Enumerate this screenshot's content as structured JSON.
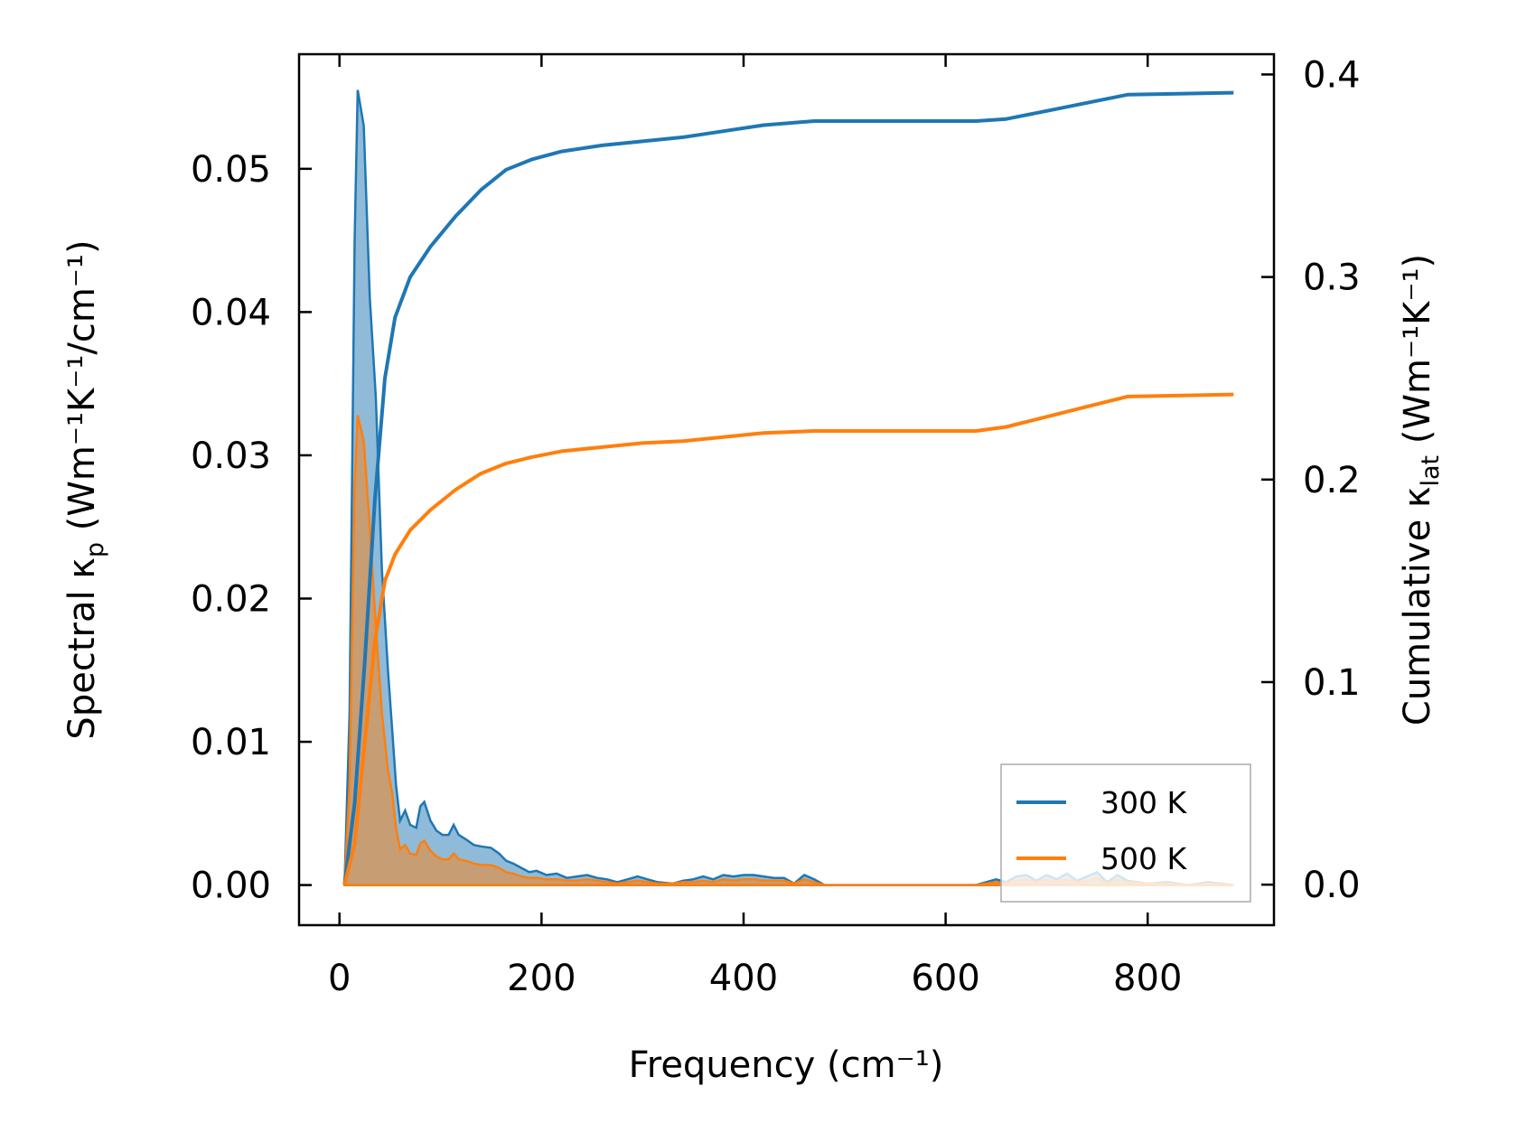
{
  "chart_data": {
    "type": "line",
    "xlabel": "Frequency (cm⁻¹)",
    "ylabel_left": {
      "main": "Spectral κ",
      "sub": "p",
      "units": " (Wm⁻¹K⁻¹/cm⁻¹)"
    },
    "ylabel_right": {
      "main": "Cumulative κ",
      "sub": "lat",
      "units": " (Wm⁻¹K⁻¹)"
    },
    "xlim": [
      -40,
      925
    ],
    "ylim_left": [
      -0.0028,
      0.058
    ],
    "ylim_right": [
      -0.02,
      0.41
    ],
    "x_ticks": [
      0,
      200,
      400,
      600,
      800
    ],
    "x_tick_labels": [
      "0",
      "200",
      "400",
      "600",
      "800"
    ],
    "y_left_ticks": [
      0,
      0.01,
      0.02,
      0.03,
      0.04,
      0.05
    ],
    "y_left_tick_labels": [
      "0.00",
      "0.01",
      "0.02",
      "0.03",
      "0.04",
      "0.05"
    ],
    "y_right_ticks": [
      0,
      0.1,
      0.2,
      0.3,
      0.4
    ],
    "y_right_tick_labels": [
      "0.0",
      "0.1",
      "0.2",
      "0.3",
      "0.4"
    ],
    "legend": {
      "position": "lower-right",
      "entries": [
        "300 K",
        "500 K"
      ]
    },
    "series": [
      {
        "name": "300 K",
        "color": "#1f77b4",
        "spectral": [
          [
            5,
            0
          ],
          [
            10,
            0.012
          ],
          [
            15,
            0.045
          ],
          [
            18,
            0.0555
          ],
          [
            24,
            0.053
          ],
          [
            30,
            0.041
          ],
          [
            36,
            0.034
          ],
          [
            42,
            0.022
          ],
          [
            48,
            0.015
          ],
          [
            52,
            0.011
          ],
          [
            56,
            0.007
          ],
          [
            60,
            0.0045
          ],
          [
            65,
            0.0052
          ],
          [
            70,
            0.0042
          ],
          [
            76,
            0.004
          ],
          [
            80,
            0.0055
          ],
          [
            84,
            0.0058
          ],
          [
            90,
            0.0045
          ],
          [
            96,
            0.0038
          ],
          [
            102,
            0.0035
          ],
          [
            108,
            0.0035
          ],
          [
            113,
            0.0042
          ],
          [
            118,
            0.0035
          ],
          [
            125,
            0.0032
          ],
          [
            133,
            0.0028
          ],
          [
            140,
            0.0027
          ],
          [
            150,
            0.0026
          ],
          [
            158,
            0.0022
          ],
          [
            165,
            0.0017
          ],
          [
            172,
            0.0015
          ],
          [
            180,
            0.0012
          ],
          [
            188,
            0.0009
          ],
          [
            195,
            0.001
          ],
          [
            205,
            0.0007
          ],
          [
            215,
            0.0008
          ],
          [
            225,
            0.0005
          ],
          [
            235,
            0.0006
          ],
          [
            245,
            0.0007
          ],
          [
            255,
            0.0005
          ],
          [
            265,
            0.0004
          ],
          [
            275,
            0.0002
          ],
          [
            285,
            0.0004
          ],
          [
            295,
            0.0006
          ],
          [
            305,
            0.0004
          ],
          [
            315,
            0.0002
          ],
          [
            330,
            0.0001
          ],
          [
            340,
            0.0003
          ],
          [
            350,
            0.0004
          ],
          [
            360,
            0.0006
          ],
          [
            370,
            0.0004
          ],
          [
            380,
            0.0007
          ],
          [
            390,
            0.0006
          ],
          [
            400,
            0.0007
          ],
          [
            410,
            0.0007
          ],
          [
            420,
            0.0006
          ],
          [
            430,
            0.0005
          ],
          [
            440,
            0.0005
          ],
          [
            450,
            0.0001
          ],
          [
            460,
            0.0007
          ],
          [
            470,
            0.0004
          ],
          [
            480,
            0
          ],
          [
            630,
            0
          ],
          [
            640,
            0.0002
          ],
          [
            650,
            0.0004
          ],
          [
            660,
            0.0002
          ],
          [
            670,
            0.0006
          ],
          [
            680,
            0.0007
          ],
          [
            690,
            0.0003
          ],
          [
            700,
            0.0007
          ],
          [
            710,
            0.0004
          ],
          [
            720,
            0.0008
          ],
          [
            730,
            0.0003
          ],
          [
            740,
            0.0006
          ],
          [
            750,
            0.0009
          ],
          [
            760,
            0.0002
          ],
          [
            770,
            0.0007
          ],
          [
            780,
            0.0003
          ],
          [
            800,
            0.0001
          ],
          [
            820,
            0.0002
          ],
          [
            840,
            0
          ],
          [
            860,
            0.0002
          ],
          [
            885,
            0
          ]
        ],
        "cumulative": [
          [
            5,
            0
          ],
          [
            15,
            0.04
          ],
          [
            25,
            0.11
          ],
          [
            35,
            0.19
          ],
          [
            45,
            0.25
          ],
          [
            55,
            0.28
          ],
          [
            70,
            0.3
          ],
          [
            90,
            0.315
          ],
          [
            115,
            0.33
          ],
          [
            140,
            0.343
          ],
          [
            165,
            0.353
          ],
          [
            190,
            0.358
          ],
          [
            220,
            0.362
          ],
          [
            260,
            0.365
          ],
          [
            300,
            0.367
          ],
          [
            340,
            0.369
          ],
          [
            380,
            0.372
          ],
          [
            420,
            0.375
          ],
          [
            470,
            0.377
          ],
          [
            630,
            0.377
          ],
          [
            660,
            0.378
          ],
          [
            700,
            0.382
          ],
          [
            740,
            0.386
          ],
          [
            780,
            0.39
          ],
          [
            885,
            0.391
          ]
        ]
      },
      {
        "name": "500 K",
        "color": "#ff7f0e",
        "spectral": [
          [
            5,
            0
          ],
          [
            10,
            0.007
          ],
          [
            15,
            0.028
          ],
          [
            18,
            0.0328
          ],
          [
            24,
            0.031
          ],
          [
            30,
            0.025
          ],
          [
            36,
            0.018
          ],
          [
            42,
            0.012
          ],
          [
            48,
            0.008
          ],
          [
            52,
            0.0065
          ],
          [
            56,
            0.004
          ],
          [
            60,
            0.0025
          ],
          [
            65,
            0.0028
          ],
          [
            70,
            0.0022
          ],
          [
            76,
            0.0021
          ],
          [
            80,
            0.0029
          ],
          [
            84,
            0.0031
          ],
          [
            90,
            0.0024
          ],
          [
            96,
            0.002
          ],
          [
            102,
            0.0018
          ],
          [
            108,
            0.0018
          ],
          [
            113,
            0.0022
          ],
          [
            118,
            0.0018
          ],
          [
            125,
            0.0017
          ],
          [
            133,
            0.0015
          ],
          [
            140,
            0.0014
          ],
          [
            150,
            0.0014
          ],
          [
            158,
            0.0012
          ],
          [
            165,
            0.0009
          ],
          [
            172,
            0.0008
          ],
          [
            180,
            0.0006
          ],
          [
            188,
            0.0005
          ],
          [
            195,
            0.0005
          ],
          [
            205,
            0.0004
          ],
          [
            215,
            0.0004
          ],
          [
            225,
            0.0003
          ],
          [
            235,
            0.0003
          ],
          [
            245,
            0.0004
          ],
          [
            255,
            0.0003
          ],
          [
            265,
            0.0002
          ],
          [
            275,
            0.0001
          ],
          [
            285,
            0.0002
          ],
          [
            295,
            0.0003
          ],
          [
            305,
            0.0002
          ],
          [
            315,
            0.0001
          ],
          [
            330,
            0.0001
          ],
          [
            340,
            0.0002
          ],
          [
            350,
            0.0002
          ],
          [
            360,
            0.0003
          ],
          [
            370,
            0.0002
          ],
          [
            380,
            0.0004
          ],
          [
            390,
            0.0003
          ],
          [
            400,
            0.0004
          ],
          [
            410,
            0.0004
          ],
          [
            420,
            0.0003
          ],
          [
            430,
            0.0003
          ],
          [
            440,
            0.0003
          ],
          [
            450,
            0.0001
          ],
          [
            460,
            0.0004
          ],
          [
            470,
            0.0002
          ],
          [
            480,
            0
          ],
          [
            630,
            0
          ],
          [
            640,
            0.0001
          ],
          [
            650,
            0.0002
          ],
          [
            660,
            0.0001
          ],
          [
            670,
            0.0003
          ],
          [
            680,
            0.0004
          ],
          [
            690,
            0.0002
          ],
          [
            700,
            0.0004
          ],
          [
            710,
            0.0002
          ],
          [
            720,
            0.0004
          ],
          [
            730,
            0.0002
          ],
          [
            740,
            0.0003
          ],
          [
            750,
            0.0005
          ],
          [
            760,
            0.0001
          ],
          [
            770,
            0.0004
          ],
          [
            780,
            0.0002
          ],
          [
            800,
            0.0001
          ],
          [
            820,
            0.0001
          ],
          [
            840,
            0
          ],
          [
            860,
            0.0001
          ],
          [
            885,
            0
          ]
        ],
        "cumulative": [
          [
            5,
            0
          ],
          [
            15,
            0.02
          ],
          [
            25,
            0.07
          ],
          [
            35,
            0.12
          ],
          [
            45,
            0.15
          ],
          [
            55,
            0.163
          ],
          [
            70,
            0.175
          ],
          [
            90,
            0.185
          ],
          [
            115,
            0.195
          ],
          [
            140,
            0.203
          ],
          [
            165,
            0.208
          ],
          [
            190,
            0.211
          ],
          [
            220,
            0.214
          ],
          [
            260,
            0.216
          ],
          [
            300,
            0.218
          ],
          [
            340,
            0.219
          ],
          [
            380,
            0.221
          ],
          [
            420,
            0.223
          ],
          [
            470,
            0.224
          ],
          [
            630,
            0.224
          ],
          [
            660,
            0.226
          ],
          [
            700,
            0.231
          ],
          [
            740,
            0.236
          ],
          [
            780,
            0.241
          ],
          [
            885,
            0.242
          ]
        ]
      }
    ]
  }
}
